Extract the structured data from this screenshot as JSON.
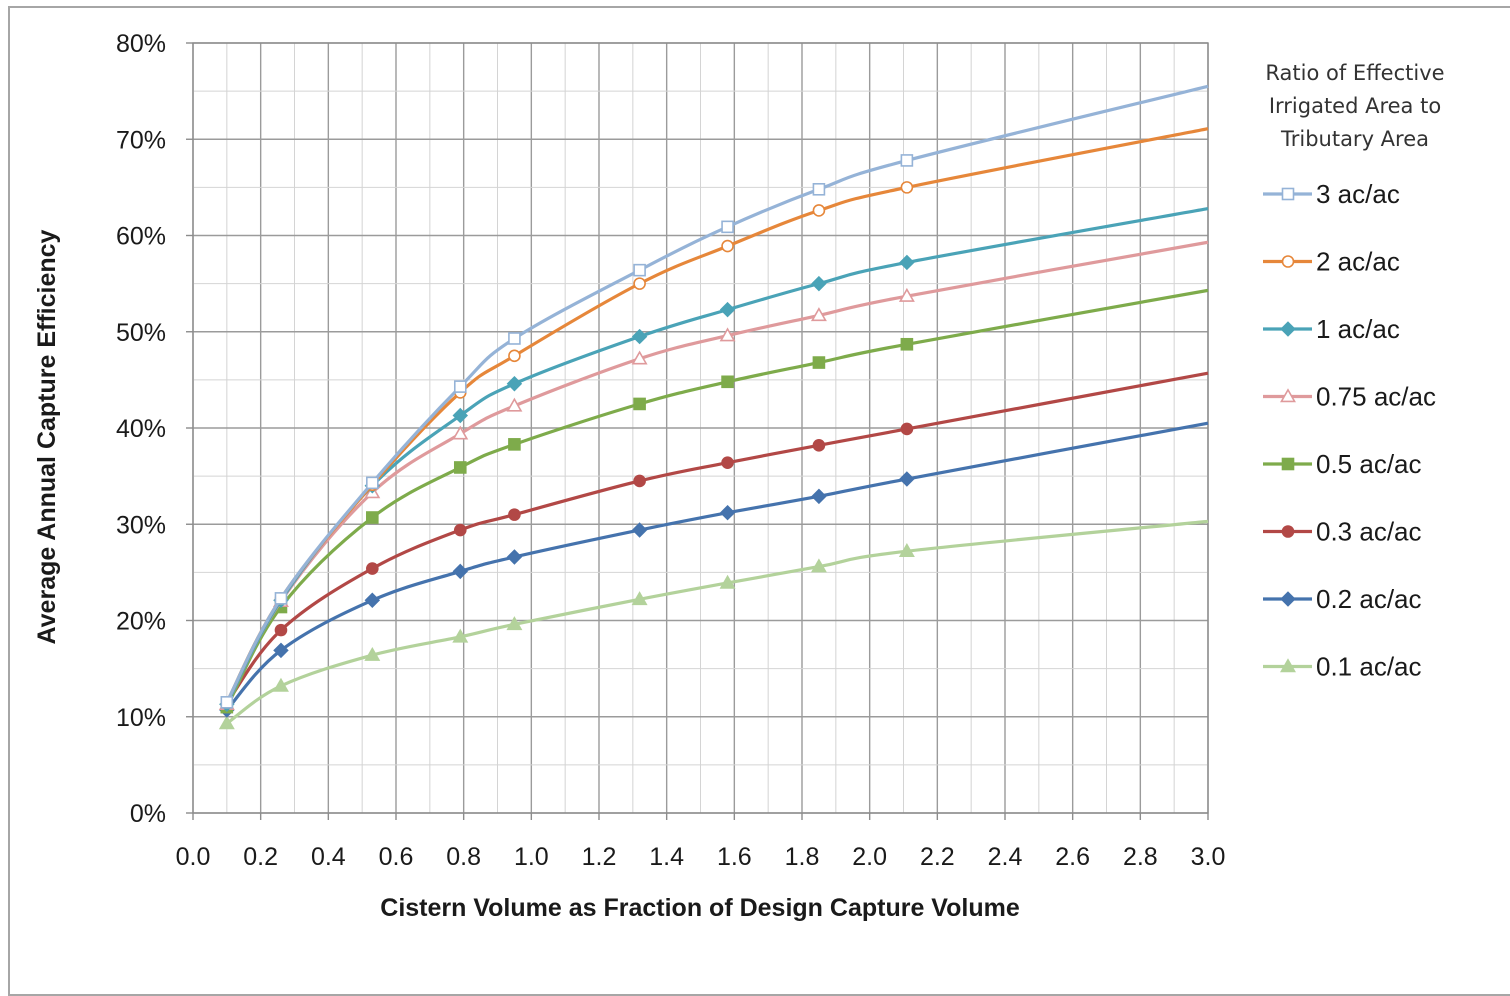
{
  "chart_data": {
    "type": "line",
    "title": "",
    "xlabel": "Cistern Volume as Fraction of Design Capture Volume",
    "ylabel": "Average Annual Capture Efficiency",
    "xlim": [
      0.0,
      3.0
    ],
    "ylim": [
      0,
      80
    ],
    "x_ticks": [
      "0.0",
      "0.2",
      "0.4",
      "0.6",
      "0.8",
      "1.0",
      "1.2",
      "1.4",
      "1.6",
      "1.8",
      "2.0",
      "2.2",
      "2.4",
      "2.6",
      "2.8",
      "3.0"
    ],
    "y_ticks": [
      "0%",
      "10%",
      "20%",
      "30%",
      "40%",
      "50%",
      "60%",
      "70%",
      "80%"
    ],
    "grid": true,
    "legend": {
      "placement": "right",
      "title": [
        "Ratio of Effective",
        "Irrigated Area to",
        "Tributary Area"
      ]
    },
    "x": [
      0.1,
      0.26,
      0.53,
      0.79,
      0.95,
      1.32,
      1.58,
      1.85,
      2.11,
      3.0
    ],
    "series": [
      {
        "name": "3 ac/ac",
        "color": "#95b3d7",
        "marker": "square-open",
        "values": [
          11.5,
          22.3,
          34.3,
          44.3,
          49.3,
          56.4,
          60.9,
          64.8,
          67.8,
          75.5
        ]
      },
      {
        "name": "2 ac/ac",
        "color": "#e6873a",
        "marker": "circle-open",
        "values": [
          11.5,
          22.3,
          34.1,
          43.7,
          47.5,
          55.0,
          58.9,
          62.6,
          65.0,
          71.1
        ]
      },
      {
        "name": "1 ac/ac",
        "color": "#4aa3b7",
        "marker": "diamond",
        "values": [
          11.3,
          22.1,
          34.0,
          41.3,
          44.6,
          49.5,
          52.3,
          55.0,
          57.2,
          62.8
        ]
      },
      {
        "name": "0.75 ac/ac",
        "color": "#df9a9c",
        "marker": "triangle-open",
        "values": [
          11.3,
          22.0,
          33.3,
          39.4,
          42.3,
          47.2,
          49.6,
          51.7,
          53.7,
          59.3
        ]
      },
      {
        "name": "0.5 ac/ac",
        "color": "#7eab4b",
        "marker": "square",
        "values": [
          11.0,
          21.4,
          30.7,
          35.9,
          38.3,
          42.5,
          44.8,
          46.8,
          48.7,
          54.3
        ]
      },
      {
        "name": "0.3 ac/ac",
        "color": "#b24846",
        "marker": "circle",
        "values": [
          11.4,
          19.0,
          25.4,
          29.4,
          31.0,
          34.5,
          36.4,
          38.2,
          39.9,
          45.7
        ]
      },
      {
        "name": "0.2 ac/ac",
        "color": "#4573ad",
        "marker": "diamond",
        "values": [
          10.7,
          16.9,
          22.1,
          25.1,
          26.6,
          29.4,
          31.2,
          32.9,
          34.7,
          40.5
        ]
      },
      {
        "name": "0.1 ac/ac",
        "color": "#b3d29b",
        "marker": "triangle",
        "values": [
          9.3,
          13.2,
          16.4,
          18.3,
          19.6,
          22.2,
          23.9,
          25.6,
          27.2,
          30.3
        ]
      }
    ]
  }
}
